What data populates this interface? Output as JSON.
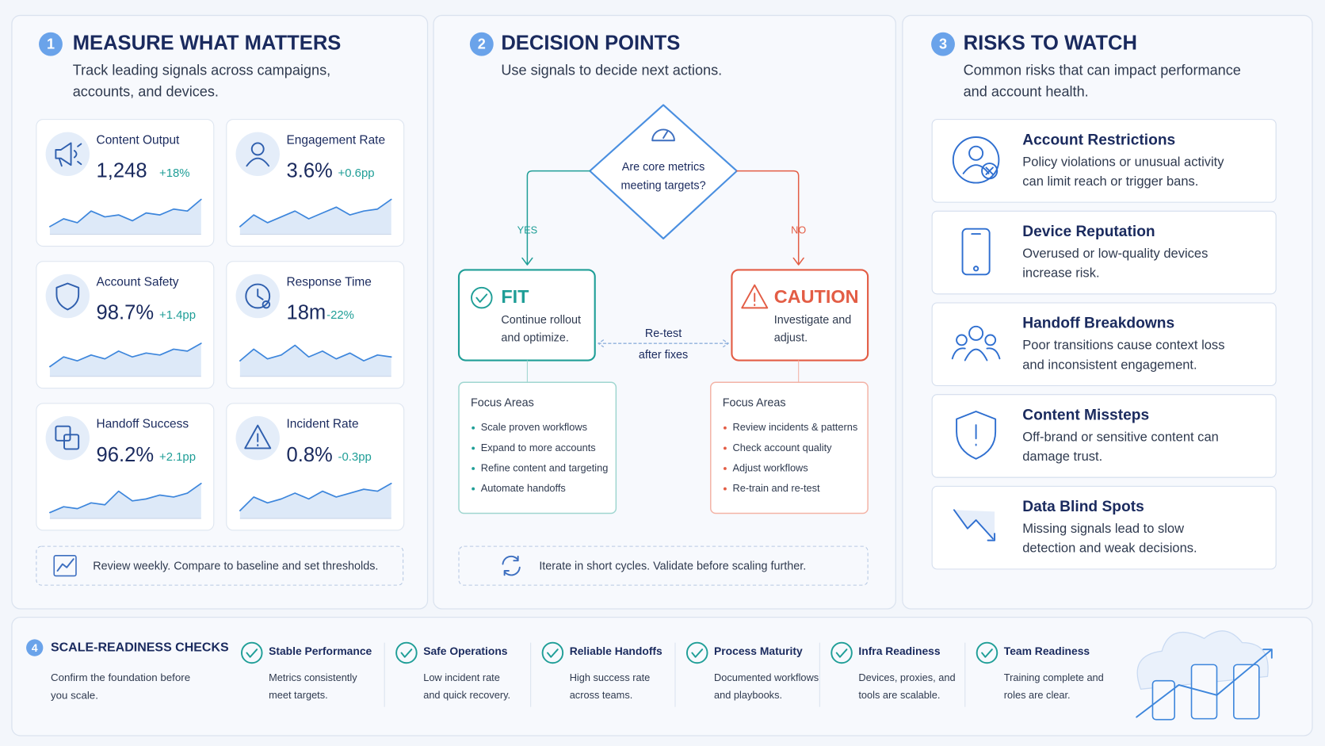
{
  "measure": {
    "number": "1",
    "title": "MEASURE WHAT MATTERS",
    "subtitle": [
      "Track leading signals across campaigns,",
      "accounts, and devices."
    ],
    "metrics": [
      {
        "label": "Content Output",
        "value": "1,248",
        "change": "+18%"
      },
      {
        "label": "Engagement Rate",
        "value": "3.6%",
        "change": "+0.6pp"
      },
      {
        "label": "Account Safety",
        "value": "98.7%",
        "change": "+1.4pp"
      },
      {
        "label": "Response Time",
        "value": "18m",
        "change": "-22%"
      },
      {
        "label": "Handoff Success",
        "value": "96.2%",
        "change": "+2.1pp"
      },
      {
        "label": "Incident Rate",
        "value": "0.8%",
        "change": "-0.3pp"
      }
    ],
    "note": "Review weekly. Compare to baseline and set thresholds."
  },
  "decision": {
    "number": "2",
    "title": "DECISION POINTS",
    "subtitle": "Use signals to decide next actions.",
    "question": [
      "Are core metrics",
      "meeting targets?"
    ],
    "yes": "YES",
    "no": "NO",
    "fit": {
      "title": "FIT",
      "text": [
        "Continue rollout",
        "and optimize."
      ],
      "focus_title": "Focus Areas",
      "focus": [
        "Scale proven workflows",
        "Expand to more accounts",
        "Refine content and targeting",
        "Automate handoffs"
      ]
    },
    "caution": {
      "title": "CAUTION",
      "text": [
        "Investigate and",
        "adjust."
      ],
      "focus_title": "Focus Areas",
      "focus": [
        "Review incidents & patterns",
        "Check account quality",
        "Adjust workflows",
        "Re-train and re-test"
      ]
    },
    "retest": [
      "Re-test",
      "after fixes"
    ],
    "note": "Iterate in short cycles. Validate before scaling further."
  },
  "risks": {
    "number": "3",
    "title": "RISKS TO WATCH",
    "subtitle": [
      "Common risks that can impact performance",
      "and account health."
    ],
    "items": [
      {
        "title": "Account Restrictions",
        "text": [
          "Policy violations or unusual activity",
          "can limit reach or trigger bans."
        ]
      },
      {
        "title": "Device Reputation",
        "text": [
          "Overused or low-quality devices",
          "increase risk."
        ]
      },
      {
        "title": "Handoff Breakdowns",
        "text": [
          "Poor transitions cause context loss",
          "and inconsistent engagement."
        ]
      },
      {
        "title": "Content Missteps",
        "text": [
          "Off-brand or sensitive content can",
          "damage trust."
        ]
      },
      {
        "title": "Data Blind Spots",
        "text": [
          "Missing signals lead to slow",
          "detection and weak decisions."
        ]
      }
    ]
  },
  "checks": {
    "number": "4",
    "title": "SCALE-READINESS CHECKS",
    "subtitle": [
      "Confirm the foundation before",
      "you scale."
    ],
    "items": [
      {
        "title": "Stable Performance",
        "text": [
          "Metrics consistently",
          "meet targets."
        ]
      },
      {
        "title": "Safe Operations",
        "text": [
          "Low incident rate",
          "and quick recovery."
        ]
      },
      {
        "title": "Reliable Handoffs",
        "text": [
          "High success rate",
          "across teams."
        ]
      },
      {
        "title": "Process Maturity",
        "text": [
          "Documented workflows",
          "and playbooks."
        ]
      },
      {
        "title": "Infra Readiness",
        "text": [
          "Devices, proxies, and",
          "tools are scalable."
        ]
      },
      {
        "title": "Team Readiness",
        "text": [
          "Training complete and",
          "roles are clear."
        ]
      }
    ]
  }
}
